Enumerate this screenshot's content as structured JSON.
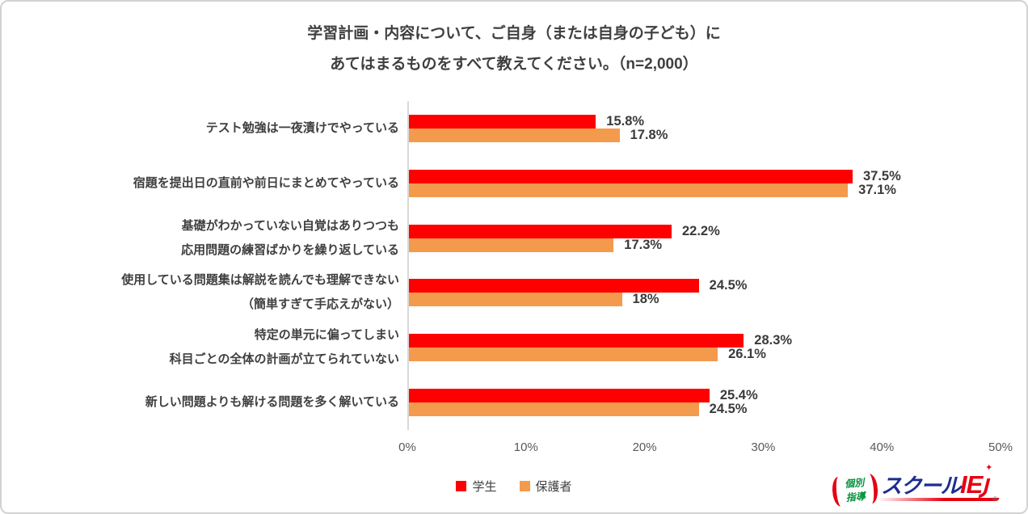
{
  "title": {
    "line1": "学習計画・内容について、ご自身（または自身の子ども）に",
    "line2": "あてはまるものをすべて教えてください。（n=2,000）"
  },
  "chart_data": {
    "type": "bar",
    "orientation": "horizontal",
    "xlim": [
      0,
      50
    ],
    "x_ticks": [
      "0%",
      "10%",
      "20%",
      "30%",
      "40%",
      "50%"
    ],
    "grid": false,
    "legend_position": "bottom",
    "categories": [
      [
        "テスト勉強は一夜漬けでやっている"
      ],
      [
        "宿題を提出日の直前や前日にまとめてやっている"
      ],
      [
        "基礎がわかっていない自覚はありつつも",
        "応用問題の練習ばかりを繰り返している"
      ],
      [
        "使用している問題集は解説を読んでも理解できない",
        "（簡単すぎて手応えがない）"
      ],
      [
        "特定の単元に偏ってしまい",
        "科目ごとの全体の計画が立てられていない"
      ],
      [
        "新しい問題よりも解ける問題を多く解いている"
      ]
    ],
    "series": [
      {
        "key": "students",
        "name": "学生",
        "color": "#FF0000",
        "values": [
          15.8,
          37.5,
          22.2,
          24.5,
          28.3,
          25.4
        ],
        "value_labels": [
          "15.8%",
          "37.5%",
          "22.2%",
          "24.5%",
          "28.3%",
          "25.4%"
        ]
      },
      {
        "key": "parents",
        "name": "保護者",
        "color": "#F49A4D",
        "values": [
          17.8,
          37.1,
          17.3,
          18,
          26.1,
          24.5
        ],
        "value_labels": [
          "17.8%",
          "37.1%",
          "17.3%",
          "18%",
          "26.1%",
          "24.5%"
        ]
      }
    ]
  },
  "legend": {
    "items": [
      {
        "label": "学生",
        "color": "#FF0000"
      },
      {
        "label": "保護者",
        "color": "#F49A4D"
      }
    ]
  },
  "logo": {
    "emblem_line1": "個別",
    "emblem_line2": "指導",
    "school": "スクール",
    "ie": "IE",
    "spark": "✦",
    "reg": "®",
    "colors": {
      "blue": "#1C2D8F",
      "red": "#E60012",
      "green": "#00913A"
    }
  }
}
